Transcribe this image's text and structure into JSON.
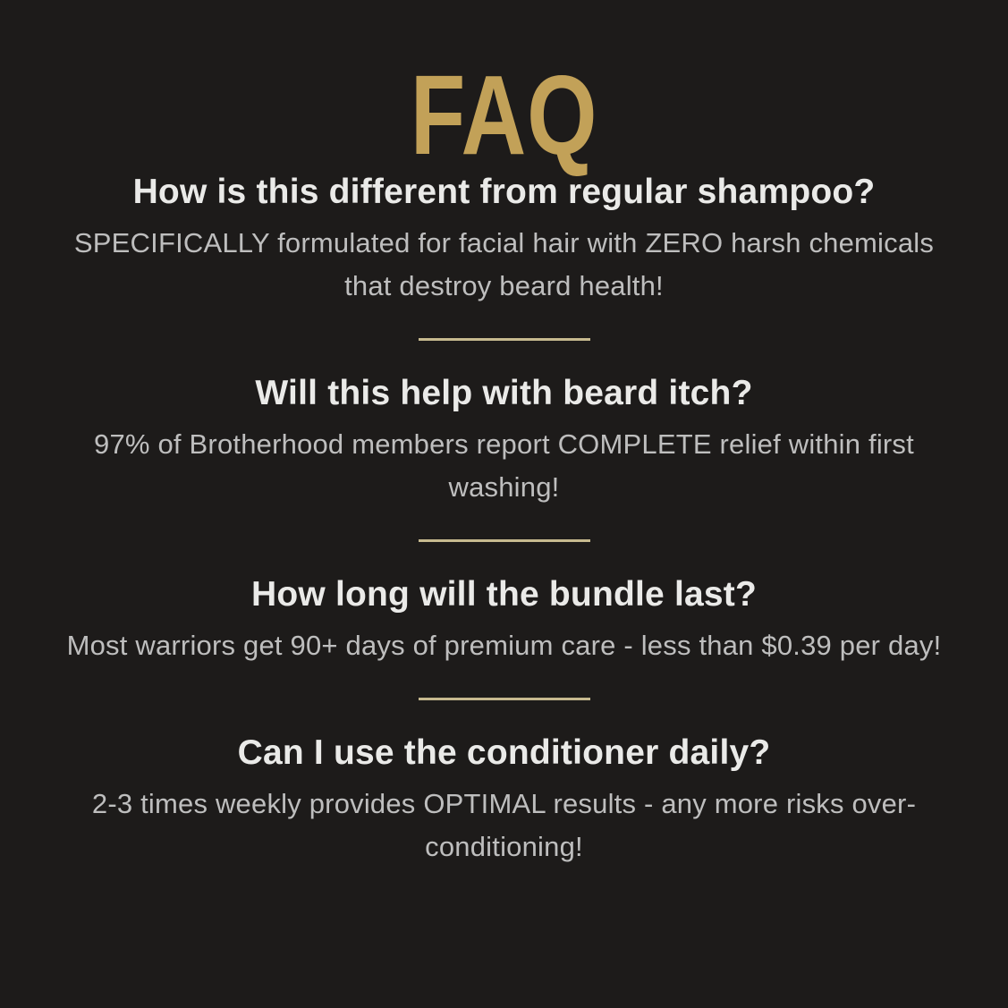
{
  "page": {
    "kind": "faq-infographic"
  },
  "colors": {
    "background": "#1d1b1a",
    "title_gold": "#c2a158",
    "divider_gold": "#c7ba8f",
    "question_text": "#eaeae8",
    "answer_text": "#bebebe"
  },
  "title": {
    "text": "FAQ"
  },
  "faq": {
    "items": [
      {
        "question": "How is this different from regular shampoo?",
        "answer": "SPECIFICALLY formulated for facial hair with ZERO harsh chemicals that destroy beard health!"
      },
      {
        "question": "Will this help with beard itch?",
        "answer": "97% of Brotherhood members report COMPLETE relief within first washing!"
      },
      {
        "question": "How long will the bundle last?",
        "answer": "Most warriors get 90+ days of premium care - less than $0.39 per day!"
      },
      {
        "question": "Can I use the conditioner daily?",
        "answer": "2-3 times weekly provides OPTIMAL results - any more risks over-conditioning!"
      }
    ]
  }
}
